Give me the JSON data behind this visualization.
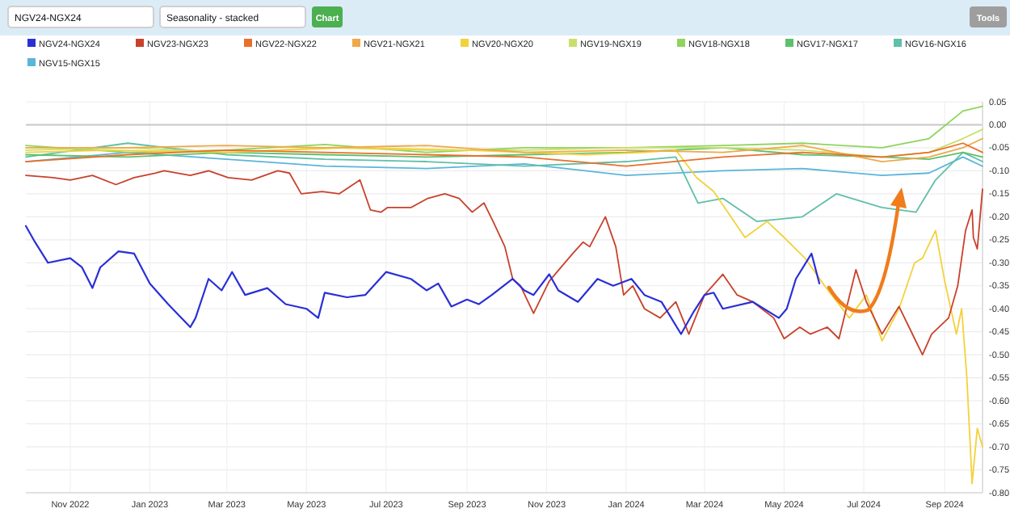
{
  "chart_data": {
    "type": "line",
    "legend": "top",
    "grid": true,
    "line_style": "solid",
    "marker": "none",
    "annotations": [
      "NGV24-NGX24",
      "Seasonality - stacked",
      "Chart",
      "Tools"
    ],
    "xlim": [
      "2022-09-28",
      "2024-09-30"
    ],
    "xticks": [
      {
        "value": "2022-11-01",
        "label": "Nov 2022"
      },
      {
        "value": "2023-01-01",
        "label": "Jan 2023"
      },
      {
        "value": "2023-03-01",
        "label": "Mar 2023"
      },
      {
        "value": "2023-05-01",
        "label": "May 2023"
      },
      {
        "value": "2023-07-01",
        "label": "Jul 2023"
      },
      {
        "value": "2023-09-01",
        "label": "Sep 2023"
      },
      {
        "value": "2023-11-01",
        "label": "Nov 2023"
      },
      {
        "value": "2024-01-01",
        "label": "Jan 2024"
      },
      {
        "value": "2024-03-01",
        "label": "Mar 2024"
      },
      {
        "value": "2024-05-01",
        "label": "May 2024"
      },
      {
        "value": "2024-07-01",
        "label": "Jul 2024"
      },
      {
        "value": "2024-09-01",
        "label": "Sep 2024"
      }
    ],
    "ylim": [
      -0.8,
      0.05
    ],
    "yticks": [
      {
        "value": 0.05,
        "label": "0.05"
      },
      {
        "value": 0,
        "label": "0.00"
      },
      {
        "value": -0.05,
        "label": "-0.05"
      },
      {
        "value": -0.1,
        "label": "-0.10"
      },
      {
        "value": -0.15,
        "label": "-0.15"
      },
      {
        "value": -0.2,
        "label": "-0.20"
      },
      {
        "value": -0.25,
        "label": "-0.25"
      },
      {
        "value": -0.3,
        "label": "-0.30"
      },
      {
        "value": -0.35,
        "label": "-0.35"
      },
      {
        "value": -0.4,
        "label": "-0.40"
      },
      {
        "value": -0.45,
        "label": "-0.45"
      },
      {
        "value": -0.5,
        "label": "-0.50"
      },
      {
        "value": -0.55,
        "label": "-0.55"
      },
      {
        "value": -0.6,
        "label": "-0.60"
      },
      {
        "value": -0.65,
        "label": "-0.65"
      },
      {
        "value": -0.7,
        "label": "-0.70"
      },
      {
        "value": -0.75,
        "label": "-0.75"
      },
      {
        "value": -0.8,
        "label": "-0.80"
      }
    ],
    "ref_lines": [
      {
        "axis": "y",
        "value": 0,
        "color": "#c8c8c8"
      }
    ],
    "series": [
      {
        "name": "NGV24-NGX24",
        "color": "#2a2fd6",
        "x": [
          "2022-09-28",
          "2022-10-05",
          "2022-10-15",
          "2022-11-01",
          "2022-11-10",
          "2022-11-18",
          "2022-11-24",
          "2022-12-08",
          "2022-12-20",
          "2023-01-01",
          "2023-01-15",
          "2023-02-01",
          "2023-02-05",
          "2023-02-15",
          "2023-02-25",
          "2023-03-05",
          "2023-03-15",
          "2023-04-01",
          "2023-04-15",
          "2023-05-01",
          "2023-05-10",
          "2023-05-15",
          "2023-06-01",
          "2023-06-15",
          "2023-07-01",
          "2023-07-20",
          "2023-08-01",
          "2023-08-10",
          "2023-08-20",
          "2023-09-01",
          "2023-09-10",
          "2023-09-20",
          "2023-10-06",
          "2023-10-15",
          "2023-10-22",
          "2023-11-03",
          "2023-11-10",
          "2023-11-25",
          "2023-12-10",
          "2023-12-22",
          "2024-01-05",
          "2024-01-15",
          "2024-01-28",
          "2024-02-12",
          "2024-02-22",
          "2024-03-01",
          "2024-03-08",
          "2024-03-15",
          "2024-04-07",
          "2024-04-27",
          "2024-05-03",
          "2024-05-10",
          "2024-05-22",
          "2024-05-28"
        ],
        "values": [
          -0.22,
          -0.255,
          -0.3,
          -0.29,
          -0.31,
          -0.355,
          -0.31,
          -0.275,
          -0.28,
          -0.345,
          -0.39,
          -0.44,
          -0.42,
          -0.335,
          -0.36,
          -0.32,
          -0.37,
          -0.355,
          -0.39,
          -0.4,
          -0.42,
          -0.365,
          -0.375,
          -0.37,
          -0.32,
          -0.335,
          -0.36,
          -0.345,
          -0.395,
          -0.38,
          -0.39,
          -0.37,
          -0.335,
          -0.36,
          -0.37,
          -0.325,
          -0.36,
          -0.385,
          -0.335,
          -0.35,
          -0.335,
          -0.37,
          -0.385,
          -0.455,
          -0.405,
          -0.37,
          -0.365,
          -0.4,
          -0.385,
          -0.42,
          -0.4,
          -0.335,
          -0.28,
          -0.345
        ]
      },
      {
        "name": "NGV23-NGX23",
        "color": "#c8412c",
        "x": [
          "2022-09-28",
          "2022-10-19",
          "2022-11-01",
          "2022-11-18",
          "2022-12-06",
          "2022-12-20",
          "2023-01-05",
          "2023-01-12",
          "2023-02-01",
          "2023-02-15",
          "2023-03-02",
          "2023-03-20",
          "2023-04-09",
          "2023-04-18",
          "2023-04-27",
          "2023-05-13",
          "2023-05-26",
          "2023-06-11",
          "2023-06-19",
          "2023-06-27",
          "2023-07-02",
          "2023-07-20",
          "2023-08-02",
          "2023-08-15",
          "2023-08-26",
          "2023-09-05",
          "2023-09-14",
          "2023-09-21",
          "2023-09-30",
          "2023-10-06",
          "2023-10-12",
          "2023-10-22",
          "2023-11-03",
          "2023-11-09",
          "2023-11-21",
          "2023-11-29",
          "2023-12-04",
          "2023-12-16",
          "2023-12-24",
          "2023-12-30",
          "2024-01-06",
          "2024-01-15",
          "2024-01-27",
          "2024-02-08",
          "2024-02-18",
          "2024-03-01",
          "2024-03-15",
          "2024-03-26",
          "2024-04-07",
          "2024-04-23",
          "2024-05-01",
          "2024-05-13",
          "2024-05-21",
          "2024-06-03",
          "2024-06-12",
          "2024-06-25",
          "2024-07-03",
          "2024-07-15",
          "2024-07-28",
          "2024-08-09",
          "2024-08-15",
          "2024-08-22",
          "2024-09-04",
          "2024-09-11",
          "2024-09-17",
          "2024-09-22",
          "2024-09-23",
          "2024-09-26",
          "2024-09-30"
        ],
        "values": [
          -0.11,
          -0.115,
          -0.12,
          -0.11,
          -0.13,
          -0.115,
          -0.105,
          -0.1,
          -0.11,
          -0.1,
          -0.115,
          -0.12,
          -0.1,
          -0.105,
          -0.15,
          -0.145,
          -0.15,
          -0.12,
          -0.185,
          -0.19,
          -0.18,
          -0.18,
          -0.16,
          -0.15,
          -0.16,
          -0.19,
          -0.17,
          -0.21,
          -0.265,
          -0.335,
          -0.35,
          -0.41,
          -0.34,
          -0.32,
          -0.28,
          -0.255,
          -0.265,
          -0.2,
          -0.265,
          -0.37,
          -0.35,
          -0.4,
          -0.42,
          -0.385,
          -0.455,
          -0.37,
          -0.325,
          -0.37,
          -0.385,
          -0.42,
          -0.465,
          -0.44,
          -0.455,
          -0.44,
          -0.465,
          -0.315,
          -0.385,
          -0.455,
          -0.395,
          -0.465,
          -0.5,
          -0.455,
          -0.42,
          -0.35,
          -0.23,
          -0.185,
          -0.245,
          -0.27,
          -0.14
        ]
      },
      {
        "name": "NGV22-NGX22",
        "color": "#e8702a",
        "x": [
          "2022-09-28",
          "2022-12-15",
          "2023-03-01",
          "2023-05-15",
          "2023-08-01",
          "2023-10-15",
          "2024-01-01",
          "2024-03-15",
          "2024-05-15",
          "2024-07-15",
          "2024-08-20",
          "2024-09-15",
          "2024-09-30"
        ],
        "values": [
          -0.08,
          -0.065,
          -0.055,
          -0.06,
          -0.065,
          -0.07,
          -0.09,
          -0.07,
          -0.06,
          -0.07,
          -0.06,
          -0.04,
          -0.06
        ]
      },
      {
        "name": "NGV21-NGX21",
        "color": "#f0a848",
        "x": [
          "2022-09-28",
          "2022-12-15",
          "2023-03-01",
          "2023-05-15",
          "2023-08-01",
          "2023-10-15",
          "2024-01-01",
          "2024-03-15",
          "2024-05-15",
          "2024-07-15",
          "2024-08-20",
          "2024-09-15",
          "2024-09-30"
        ],
        "values": [
          -0.05,
          -0.05,
          -0.045,
          -0.05,
          -0.045,
          -0.06,
          -0.055,
          -0.06,
          -0.045,
          -0.08,
          -0.07,
          -0.05,
          -0.03
        ]
      },
      {
        "name": "NGV20-NGX20",
        "color": "#f2d23c",
        "x": [
          "2022-09-28",
          "2022-12-01",
          "2023-03-01",
          "2023-06-01",
          "2023-09-01",
          "2023-12-01",
          "2024-01-15",
          "2024-02-08",
          "2024-02-24",
          "2024-03-08",
          "2024-03-20",
          "2024-04-01",
          "2024-04-18",
          "2024-05-01",
          "2024-05-17",
          "2024-06-01",
          "2024-06-20",
          "2024-07-03",
          "2024-07-15",
          "2024-07-28",
          "2024-08-09",
          "2024-08-15",
          "2024-08-25",
          "2024-09-01",
          "2024-09-10",
          "2024-09-14",
          "2024-09-18",
          "2024-09-22",
          "2024-09-26",
          "2024-09-30"
        ],
        "values": [
          -0.06,
          -0.055,
          -0.06,
          -0.05,
          -0.055,
          -0.065,
          -0.06,
          -0.055,
          -0.115,
          -0.145,
          -0.195,
          -0.245,
          -0.21,
          -0.245,
          -0.29,
          -0.35,
          -0.42,
          -0.37,
          -0.47,
          -0.4,
          -0.3,
          -0.29,
          -0.23,
          -0.34,
          -0.455,
          -0.4,
          -0.55,
          -0.78,
          -0.66,
          -0.7
        ]
      },
      {
        "name": "NGV19-NGX19",
        "color": "#c8e06a",
        "x": [
          "2022-09-28",
          "2022-12-15",
          "2023-03-01",
          "2023-05-15",
          "2023-08-01",
          "2023-10-15",
          "2024-01-01",
          "2024-03-15",
          "2024-05-15",
          "2024-07-15",
          "2024-08-20",
          "2024-09-15",
          "2024-09-30"
        ],
        "values": [
          -0.055,
          -0.05,
          -0.06,
          -0.05,
          -0.055,
          -0.055,
          -0.05,
          -0.05,
          -0.055,
          -0.07,
          -0.06,
          -0.03,
          -0.01
        ]
      },
      {
        "name": "NGV18-NGX18",
        "color": "#8fd45e",
        "x": [
          "2022-09-28",
          "2022-12-15",
          "2023-03-01",
          "2023-05-15",
          "2023-08-01",
          "2023-10-15",
          "2024-01-01",
          "2024-03-15",
          "2024-05-15",
          "2024-07-15",
          "2024-08-20",
          "2024-09-15",
          "2024-09-30"
        ],
        "values": [
          -0.045,
          -0.06,
          -0.055,
          -0.043,
          -0.06,
          -0.05,
          -0.05,
          -0.045,
          -0.04,
          -0.05,
          -0.03,
          0.03,
          0.04
        ]
      },
      {
        "name": "NGV17-NGX17",
        "color": "#5cc16e",
        "x": [
          "2022-09-28",
          "2022-12-15",
          "2023-03-01",
          "2023-05-15",
          "2023-08-01",
          "2023-10-15",
          "2024-01-01",
          "2024-03-15",
          "2024-05-15",
          "2024-07-15",
          "2024-08-20",
          "2024-09-15",
          "2024-09-30"
        ],
        "values": [
          -0.065,
          -0.07,
          -0.06,
          -0.065,
          -0.07,
          -0.065,
          -0.06,
          -0.05,
          -0.065,
          -0.07,
          -0.075,
          -0.06,
          -0.07
        ]
      },
      {
        "name": "NGV16-NGX16",
        "color": "#5fbfa8",
        "x": [
          "2022-09-28",
          "2022-12-15",
          "2023-03-01",
          "2023-05-15",
          "2023-08-01",
          "2023-10-15",
          "2024-01-01",
          "2024-02-08",
          "2024-02-25",
          "2024-03-15",
          "2024-04-10",
          "2024-05-15",
          "2024-06-10",
          "2024-07-15",
          "2024-08-10",
          "2024-08-25",
          "2024-09-15",
          "2024-09-30"
        ],
        "values": [
          -0.07,
          -0.04,
          -0.065,
          -0.075,
          -0.08,
          -0.09,
          -0.08,
          -0.07,
          -0.17,
          -0.16,
          -0.21,
          -0.2,
          -0.15,
          -0.18,
          -0.19,
          -0.12,
          -0.06,
          -0.08
        ]
      },
      {
        "name": "NGV15-NGX15",
        "color": "#5bb5d9",
        "x": [
          "2022-09-28",
          "2022-12-15",
          "2023-03-01",
          "2023-05-15",
          "2023-08-01",
          "2023-10-15",
          "2024-01-01",
          "2024-03-15",
          "2024-05-15",
          "2024-07-15",
          "2024-08-20",
          "2024-09-15",
          "2024-09-30"
        ],
        "values": [
          -0.08,
          -0.06,
          -0.075,
          -0.09,
          -0.095,
          -0.085,
          -0.11,
          -0.1,
          -0.095,
          -0.11,
          -0.105,
          -0.07,
          -0.09
        ]
      }
    ]
  }
}
